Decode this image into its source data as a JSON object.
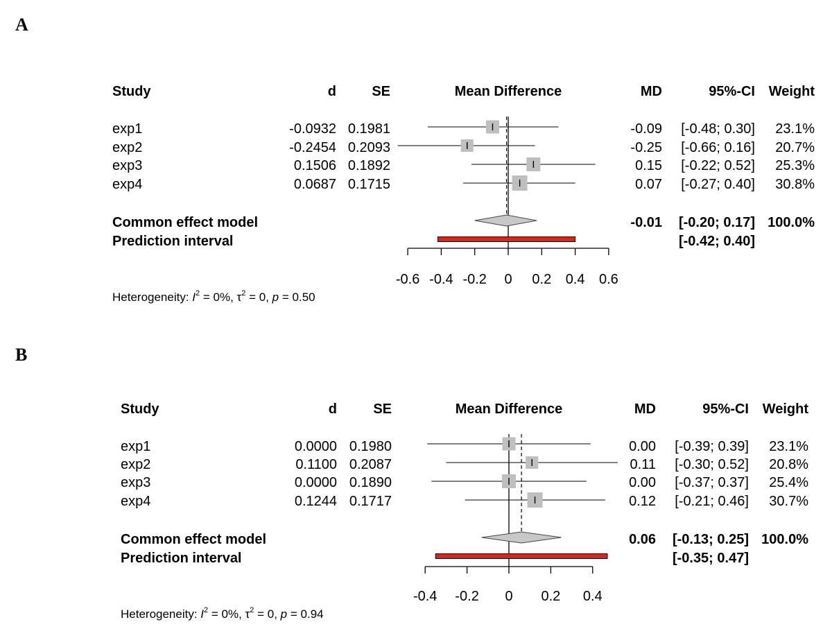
{
  "chart_data": [
    {
      "type": "forest",
      "panel": "A",
      "headers": {
        "study": "Study",
        "d": "d",
        "se": "SE",
        "plot": "Mean Difference",
        "md": "MD",
        "ci": "95%-CI",
        "weight": "Weight"
      },
      "xlim": [
        -0.6,
        0.6
      ],
      "ticks": [
        "-0.6",
        "-0.4",
        "-0.2",
        "0",
        "0.2",
        "0.4",
        "0.6"
      ],
      "tick_values": [
        -0.6,
        -0.4,
        -0.2,
        0,
        0.2,
        0.4,
        0.6
      ],
      "studies": [
        {
          "name": "exp1",
          "d": "-0.0932",
          "se": "0.1981",
          "md": "-0.09",
          "ci": "[-0.48; 0.30]",
          "weight": "23.1%",
          "est": -0.0932,
          "lo": -0.48,
          "hi": 0.3,
          "w": 23.1
        },
        {
          "name": "exp2",
          "d": "-0.2454",
          "se": "0.2093",
          "md": "-0.25",
          "ci": "[-0.66; 0.16]",
          "weight": "20.7%",
          "est": -0.2454,
          "lo": -0.66,
          "hi": 0.16,
          "w": 20.7
        },
        {
          "name": "exp3",
          "d": "0.1506",
          "se": "0.1892",
          "md": "0.15",
          "ci": "[-0.22; 0.52]",
          "weight": "25.3%",
          "est": 0.1506,
          "lo": -0.22,
          "hi": 0.52,
          "w": 25.3
        },
        {
          "name": "exp4",
          "d": "0.0687",
          "se": "0.1715",
          "md": "0.07",
          "ci": "[-0.27; 0.40]",
          "weight": "30.8%",
          "est": 0.0687,
          "lo": -0.27,
          "hi": 0.4,
          "w": 30.8
        }
      ],
      "common": {
        "label": "Common effect model",
        "md": "-0.01",
        "ci": "[-0.20; 0.17]",
        "weight": "100.0%",
        "est": -0.01,
        "lo": -0.2,
        "hi": 0.17
      },
      "prediction": {
        "label": "Prediction interval",
        "ci": "[-0.42; 0.40]",
        "lo": -0.42,
        "hi": 0.4
      },
      "heterogeneity": {
        "prefix": "Heterogeneity: ",
        "i2": "I",
        "i2_val": " = 0%, ",
        "tau": "τ",
        "tau_val": " = 0, ",
        "p": "p",
        "p_val": " = 0.50"
      },
      "colors": {
        "square": "#bfbfbf",
        "diamond": "#c8c8c8",
        "prediction": "#d9251c"
      }
    },
    {
      "type": "forest",
      "panel": "B",
      "headers": {
        "study": "Study",
        "d": "d",
        "se": "SE",
        "plot": "Mean Difference",
        "md": "MD",
        "ci": "95%-CI",
        "weight": "Weight"
      },
      "xlim": [
        -0.4,
        0.4
      ],
      "ticks": [
        "-0.4",
        "-0.2",
        "0",
        "0.2",
        "0.4"
      ],
      "tick_values": [
        -0.4,
        -0.2,
        0,
        0.2,
        0.4
      ],
      "studies": [
        {
          "name": "exp1",
          "d": "0.0000",
          "se": "0.1980",
          "md": "0.00",
          "ci": "[-0.39; 0.39]",
          "weight": "23.1%",
          "est": 0.0,
          "lo": -0.39,
          "hi": 0.39,
          "w": 23.1
        },
        {
          "name": "exp2",
          "d": "0.1100",
          "se": "0.2087",
          "md": "0.11",
          "ci": "[-0.30; 0.52]",
          "weight": "20.8%",
          "est": 0.11,
          "lo": -0.3,
          "hi": 0.52,
          "w": 20.8
        },
        {
          "name": "exp3",
          "d": "0.0000",
          "se": "0.1890",
          "md": "0.00",
          "ci": "[-0.37; 0.37]",
          "weight": "25.4%",
          "est": 0.0,
          "lo": -0.37,
          "hi": 0.37,
          "w": 25.4
        },
        {
          "name": "exp4",
          "d": "0.1244",
          "se": "0.1717",
          "md": "0.12",
          "ci": "[-0.21; 0.46]",
          "weight": "30.7%",
          "est": 0.1244,
          "lo": -0.21,
          "hi": 0.46,
          "w": 30.7
        }
      ],
      "common": {
        "label": "Common effect model",
        "md": "0.06",
        "ci": "[-0.13; 0.25]",
        "weight": "100.0%",
        "est": 0.06,
        "lo": -0.13,
        "hi": 0.25
      },
      "prediction": {
        "label": "Prediction interval",
        "ci": "[-0.35; 0.47]",
        "lo": -0.35,
        "hi": 0.47
      },
      "heterogeneity": {
        "prefix": "Heterogeneity: ",
        "i2": "I",
        "i2_val": " = 0%, ",
        "tau": "τ",
        "tau_val": " = 0, ",
        "p": "p",
        "p_val": " = 0.94"
      },
      "colors": {
        "square": "#bfbfbf",
        "diamond": "#c8c8c8",
        "prediction": "#d9251c"
      }
    }
  ]
}
